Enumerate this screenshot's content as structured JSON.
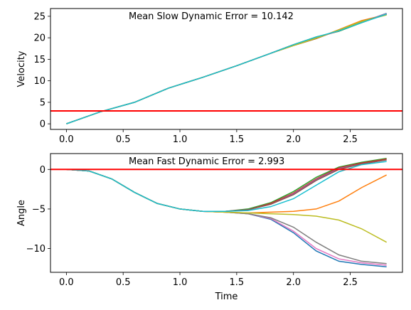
{
  "chart_data": [
    {
      "type": "line",
      "ylabel": "Velocity",
      "xlabel": "",
      "annotation": "Mean Slow Dynamic Error = 10.142",
      "xlim": [
        -0.14,
        2.96
      ],
      "ylim": [
        -1.3,
        26.8
      ],
      "xticks": [
        0.0,
        0.5,
        1.0,
        1.5,
        2.0,
        2.5
      ],
      "xtick_labels": [
        "0.0",
        "0.5",
        "1.0",
        "1.5",
        "2.0",
        "2.5"
      ],
      "show_xtick_labels": true,
      "yticks": [
        0,
        5,
        10,
        15,
        20,
        25
      ],
      "ytick_labels": [
        "0",
        "5",
        "10",
        "15",
        "20",
        "25"
      ],
      "reference_line": {
        "y": 3.0,
        "color": "#ff0000"
      },
      "grid": false,
      "series": [
        {
          "color": "#1f77b4",
          "x": [
            0.0,
            0.3,
            0.6,
            0.9,
            1.2,
            1.5,
            1.8,
            2.0,
            2.2,
            2.4,
            2.6,
            2.82
          ],
          "y": [
            0.0,
            2.8,
            5.0,
            8.3,
            10.8,
            13.5,
            16.4,
            18.3,
            20.1,
            21.6,
            23.6,
            25.7
          ]
        },
        {
          "color": "#ff7f0e",
          "x": [
            0.0,
            0.3,
            0.6,
            0.9,
            1.2,
            1.5,
            1.8,
            2.0,
            2.2,
            2.4,
            2.6,
            2.82
          ],
          "y": [
            0.0,
            2.8,
            5.0,
            8.3,
            10.8,
            13.5,
            16.4,
            18.2,
            19.8,
            21.9,
            24.0,
            25.4
          ]
        },
        {
          "color": "#2ca02c",
          "x": [
            0.0,
            0.3,
            0.6,
            0.9,
            1.2,
            1.5,
            1.8,
            2.0,
            2.2,
            2.4,
            2.6,
            2.82
          ],
          "y": [
            0.0,
            2.8,
            5.0,
            8.3,
            10.8,
            13.5,
            16.4,
            18.4,
            20.2,
            21.5,
            23.5,
            25.6
          ]
        },
        {
          "color": "#d62728",
          "x": [
            0.0,
            0.3,
            0.6,
            0.9,
            1.2,
            1.5,
            1.8,
            2.0,
            2.2,
            2.4,
            2.6,
            2.82
          ],
          "y": [
            0.0,
            2.8,
            5.0,
            8.3,
            10.8,
            13.5,
            16.4,
            18.4,
            20.0,
            21.6,
            23.6,
            25.5
          ]
        },
        {
          "color": "#9467bd",
          "x": [
            0.0,
            0.3,
            0.6,
            0.9,
            1.2,
            1.5,
            1.8,
            2.0,
            2.2,
            2.4,
            2.6,
            2.82
          ],
          "y": [
            0.0,
            2.8,
            5.0,
            8.3,
            10.8,
            13.5,
            16.4,
            18.3,
            19.9,
            21.7,
            23.7,
            25.5
          ]
        },
        {
          "color": "#8c564b",
          "x": [
            0.0,
            0.3,
            0.6,
            0.9,
            1.2,
            1.5,
            1.8,
            2.0,
            2.2,
            2.4,
            2.6,
            2.82
          ],
          "y": [
            0.0,
            2.8,
            5.0,
            8.3,
            10.8,
            13.5,
            16.4,
            18.2,
            19.8,
            21.8,
            23.8,
            25.5
          ]
        },
        {
          "color": "#e377c2",
          "x": [
            0.0,
            0.3,
            0.6,
            0.9,
            1.2,
            1.5,
            1.8,
            2.0,
            2.2,
            2.4,
            2.6,
            2.82
          ],
          "y": [
            0.0,
            2.8,
            5.0,
            8.3,
            10.8,
            13.5,
            16.4,
            18.3,
            20.1,
            21.6,
            23.6,
            25.6
          ]
        },
        {
          "color": "#7f7f7f",
          "x": [
            0.0,
            0.3,
            0.6,
            0.9,
            1.2,
            1.5,
            1.8,
            2.0,
            2.2,
            2.4,
            2.6,
            2.82
          ],
          "y": [
            0.0,
            2.8,
            5.0,
            8.3,
            10.8,
            13.5,
            16.4,
            18.3,
            20.0,
            21.7,
            23.7,
            25.5
          ]
        },
        {
          "color": "#bcbd22",
          "x": [
            0.0,
            0.3,
            0.6,
            0.9,
            1.2,
            1.5,
            1.8,
            2.0,
            2.2,
            2.4,
            2.6,
            2.82
          ],
          "y": [
            0.0,
            2.8,
            5.0,
            8.3,
            10.8,
            13.5,
            16.4,
            18.2,
            19.9,
            21.8,
            23.8,
            25.3
          ]
        },
        {
          "color": "#17becf",
          "x": [
            0.0,
            0.3,
            0.6,
            0.9,
            1.2,
            1.5,
            1.8,
            2.0,
            2.2,
            2.4,
            2.6,
            2.82
          ],
          "y": [
            0.0,
            2.8,
            5.0,
            8.3,
            10.8,
            13.5,
            16.4,
            18.4,
            20.2,
            21.6,
            23.5,
            25.5
          ]
        }
      ]
    },
    {
      "type": "line",
      "ylabel": "Angle",
      "xlabel": "Time",
      "annotation": "Mean Fast Dynamic Error = 2.993",
      "xlim": [
        -0.14,
        2.96
      ],
      "ylim": [
        -13.0,
        2.0
      ],
      "xticks": [
        0.0,
        0.5,
        1.0,
        1.5,
        2.0,
        2.5
      ],
      "xtick_labels": [
        "0.0",
        "0.5",
        "1.0",
        "1.5",
        "2.0",
        "2.5"
      ],
      "show_xtick_labels": true,
      "yticks": [
        0,
        -5,
        -10
      ],
      "ytick_labels": [
        "0",
        "−5",
        "−10"
      ],
      "reference_line": {
        "y": 0.0,
        "color": "#ff0000"
      },
      "grid": false,
      "series": [
        {
          "color": "#1f77b4",
          "x": [
            0.0,
            0.2,
            0.4,
            0.6,
            0.8,
            1.0,
            1.2,
            1.4,
            1.6,
            1.8,
            2.0,
            2.2,
            2.4,
            2.6,
            2.82
          ],
          "y": [
            0.0,
            -0.2,
            -1.2,
            -2.9,
            -4.3,
            -5.0,
            -5.3,
            -5.4,
            -5.6,
            -6.3,
            -8.0,
            -10.3,
            -11.6,
            -12.0,
            -12.3
          ]
        },
        {
          "color": "#ff7f0e",
          "x": [
            0.0,
            0.2,
            0.4,
            0.6,
            0.8,
            1.0,
            1.2,
            1.4,
            1.6,
            1.8,
            2.0,
            2.2,
            2.4,
            2.6,
            2.82
          ],
          "y": [
            0.0,
            -0.2,
            -1.2,
            -2.9,
            -4.3,
            -5.0,
            -5.3,
            -5.4,
            -5.5,
            -5.4,
            -5.3,
            -5.0,
            -4.0,
            -2.3,
            -0.7
          ]
        },
        {
          "color": "#2ca02c",
          "x": [
            0.0,
            0.2,
            0.4,
            0.6,
            0.8,
            1.0,
            1.2,
            1.4,
            1.6,
            1.8,
            2.0,
            2.2,
            2.4,
            2.6,
            2.82
          ],
          "y": [
            0.0,
            -0.2,
            -1.2,
            -2.9,
            -4.3,
            -5.0,
            -5.3,
            -5.3,
            -5.0,
            -4.2,
            -2.8,
            -1.0,
            0.3,
            0.9,
            1.4
          ]
        },
        {
          "color": "#d62728",
          "x": [
            0.0,
            0.2,
            0.4,
            0.6,
            0.8,
            1.0,
            1.2,
            1.4,
            1.6,
            1.8,
            2.0,
            2.2,
            2.4,
            2.6,
            2.82
          ],
          "y": [
            0.0,
            -0.2,
            -1.2,
            -2.9,
            -4.3,
            -5.0,
            -5.3,
            -5.3,
            -5.1,
            -4.3,
            -3.0,
            -1.2,
            0.2,
            0.8,
            1.3
          ]
        },
        {
          "color": "#9467bd",
          "x": [
            0.0,
            0.2,
            0.4,
            0.6,
            0.8,
            1.0,
            1.2,
            1.4,
            1.6,
            1.8,
            2.0,
            2.2,
            2.4,
            2.6,
            2.82
          ],
          "y": [
            0.0,
            -0.2,
            -1.2,
            -2.9,
            -4.3,
            -5.0,
            -5.3,
            -5.3,
            -5.1,
            -4.4,
            -3.1,
            -1.3,
            0.1,
            0.7,
            1.2
          ]
        },
        {
          "color": "#8c564b",
          "x": [
            0.0,
            0.2,
            0.4,
            0.6,
            0.8,
            1.0,
            1.2,
            1.4,
            1.6,
            1.8,
            2.0,
            2.2,
            2.4,
            2.6,
            2.82
          ],
          "y": [
            0.0,
            -0.2,
            -1.2,
            -2.9,
            -4.3,
            -5.0,
            -5.3,
            -5.3,
            -5.1,
            -4.4,
            -3.2,
            -1.4,
            0.0,
            0.7,
            1.2
          ]
        },
        {
          "color": "#e377c2",
          "x": [
            0.0,
            0.2,
            0.4,
            0.6,
            0.8,
            1.0,
            1.2,
            1.4,
            1.6,
            1.8,
            2.0,
            2.2,
            2.4,
            2.6,
            2.82
          ],
          "y": [
            0.0,
            -0.2,
            -1.2,
            -2.9,
            -4.3,
            -5.0,
            -5.3,
            -5.4,
            -5.6,
            -6.2,
            -7.8,
            -10.0,
            -11.3,
            -11.8,
            -12.1
          ]
        },
        {
          "color": "#7f7f7f",
          "x": [
            0.0,
            0.2,
            0.4,
            0.6,
            0.8,
            1.0,
            1.2,
            1.4,
            1.6,
            1.8,
            2.0,
            2.2,
            2.4,
            2.6,
            2.82
          ],
          "y": [
            0.0,
            -0.2,
            -1.2,
            -2.9,
            -4.3,
            -5.0,
            -5.3,
            -5.4,
            -5.6,
            -6.1,
            -7.3,
            -9.2,
            -10.8,
            -11.6,
            -11.9
          ]
        },
        {
          "color": "#bcbd22",
          "x": [
            0.0,
            0.2,
            0.4,
            0.6,
            0.8,
            1.0,
            1.2,
            1.4,
            1.6,
            1.8,
            2.0,
            2.2,
            2.4,
            2.6,
            2.82
          ],
          "y": [
            0.0,
            -0.2,
            -1.2,
            -2.9,
            -4.3,
            -5.0,
            -5.3,
            -5.4,
            -5.5,
            -5.6,
            -5.7,
            -5.9,
            -6.4,
            -7.5,
            -9.2
          ]
        },
        {
          "color": "#17becf",
          "x": [
            0.0,
            0.2,
            0.4,
            0.6,
            0.8,
            1.0,
            1.2,
            1.4,
            1.6,
            1.8,
            2.0,
            2.2,
            2.4,
            2.6,
            2.82
          ],
          "y": [
            0.0,
            -0.2,
            -1.2,
            -2.9,
            -4.3,
            -5.0,
            -5.3,
            -5.3,
            -5.2,
            -4.7,
            -3.7,
            -2.0,
            -0.3,
            0.6,
            1.0
          ]
        }
      ]
    }
  ]
}
